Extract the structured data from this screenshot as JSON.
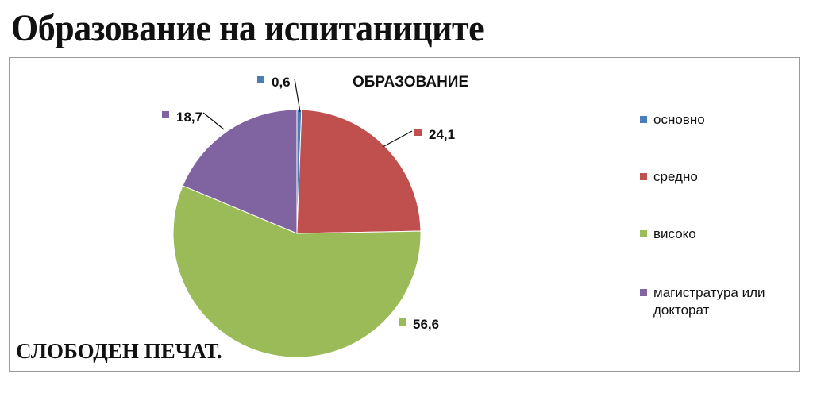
{
  "page_title": "Образование на испитаниците",
  "watermark": "СЛОБОДЕН ПЕЧАТ.",
  "chart_data": {
    "type": "pie",
    "title": "ОБРАЗОВАНИЕ",
    "categories": [
      "основно",
      "средно",
      "високо",
      "магистратура или докторат"
    ],
    "values": [
      0.6,
      24.1,
      56.6,
      18.7
    ],
    "value_labels": [
      "0,6",
      "24,1",
      "56,6",
      "18,7"
    ],
    "colors": [
      "#4a7ebb",
      "#c0504d",
      "#9bbb59",
      "#8064a2"
    ],
    "legend_position": "right"
  }
}
